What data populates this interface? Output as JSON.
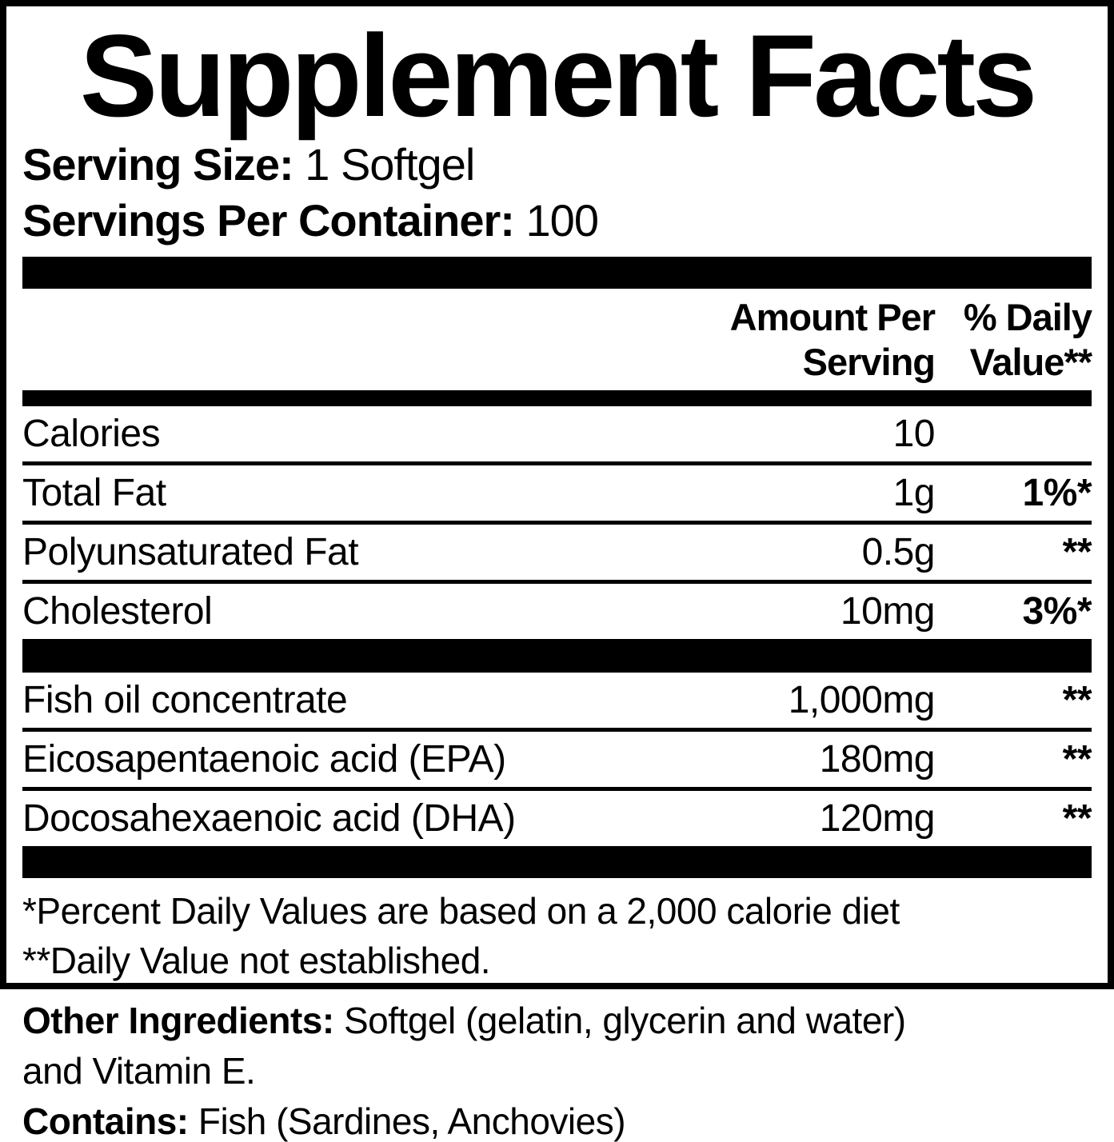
{
  "colors": {
    "ink": "#000000",
    "paper": "#ffffff"
  },
  "label": {
    "title": "Supplement Facts",
    "serving": {
      "size_label": "Serving Size:",
      "size_value": "1 Softgel",
      "per_container_label": "Servings Per Container:",
      "per_container_value": "100"
    },
    "columns": {
      "amount_line1": "Amount Per",
      "amount_line2": "Serving",
      "dv_line1": "% Daily",
      "dv_line2": "Value**"
    },
    "rows": [
      {
        "name": "Calories",
        "amount": "10",
        "dv": ""
      },
      {
        "name": "Total Fat",
        "amount": "1g",
        "dv": "1%*"
      },
      {
        "name": "Polyunsaturated Fat",
        "amount": "0.5g",
        "dv": "**"
      },
      {
        "name": "Cholesterol",
        "amount": "10mg",
        "dv": "3%*"
      },
      {
        "name": "Fish oil concentrate",
        "amount": "1,000mg",
        "dv": "**"
      },
      {
        "name": "Eicosapentaenoic acid (EPA)",
        "amount": "180mg",
        "dv": "**"
      },
      {
        "name": "Docosahexaenoic acid (DHA)",
        "amount": "120mg",
        "dv": "**"
      }
    ],
    "footnotes": {
      "percent_daily": "*Percent Daily Values are based on a 2,000 calorie diet",
      "not_established": "**Daily Value not established."
    }
  },
  "footer": {
    "other_ingredients_label": "Other Ingredients:",
    "other_ingredients_value": "Softgel (gelatin, glycerin and water)",
    "other_ingredients_continued": "and Vitamin E.",
    "contains_label": "Contains:",
    "contains_value": "Fish (Sardines, Anchovies)"
  }
}
